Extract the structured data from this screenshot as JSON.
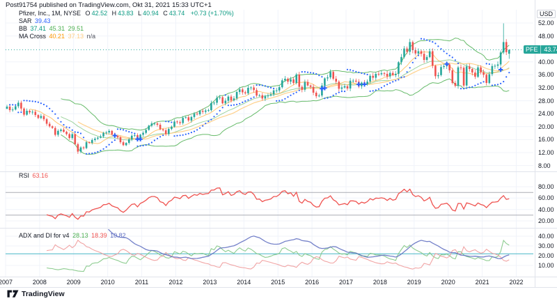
{
  "header": {
    "publish_line": "Post91754 published on TradingView.com, Okt 31, 2021 15:33 UTC+1"
  },
  "legend": {
    "symbol_title": "Pfizer, Inc., 1M, NYSE",
    "ohlc": {
      "open": {
        "label": "O",
        "value": "42.52"
      },
      "high": {
        "label": "H",
        "value": "43.83"
      },
      "low": {
        "label": "L",
        "value": "40.94"
      },
      "close": {
        "label": "C",
        "value": "43.74"
      },
      "change": "+0.73 (+1.70%)"
    },
    "sar": {
      "label": "SAR",
      "value": "39.43"
    },
    "bb": {
      "label": "BB",
      "values": [
        "37.41",
        "45.31",
        "29.51"
      ]
    },
    "ma_cross": {
      "label": "MA Cross",
      "values": [
        "40.21",
        "37.13",
        "n/a"
      ]
    },
    "rsi": {
      "label": "RSI",
      "value": "63.16"
    },
    "adx": {
      "label": "ADX and DI for v4",
      "values": [
        "28.13",
        "18.39",
        "10.82"
      ]
    }
  },
  "axes": {
    "currency_badge": "USD",
    "symbol_badge": "PFE",
    "last_price": "43.74",
    "price_ticks": [
      52,
      48,
      40,
      36,
      32,
      28,
      24,
      20,
      16,
      12,
      8
    ],
    "rsi_ticks": [
      80,
      60,
      40,
      20
    ],
    "adx_ticks": [
      40,
      30,
      20,
      10
    ],
    "years": [
      "2007",
      "2008",
      "2009",
      "2010",
      "2011",
      "2012",
      "2013",
      "2014",
      "2015",
      "2016",
      "2017",
      "2018",
      "2019",
      "2020",
      "2021",
      "2022"
    ]
  },
  "branding": {
    "logo_text": "TradingView"
  },
  "colors": {
    "up": "#26a69a",
    "down": "#ef5350",
    "bb": "#4caf50",
    "sar": "#2962ff",
    "ma_fast": "#ff9800",
    "ma_slow": "#ffcc80",
    "cross_marker": "#2962ff",
    "last_price_line": "#26a69a",
    "rsi": "#ef5350",
    "rsi_band": "#9598a1",
    "adx": "#5c6bc0",
    "di_plus": "#81c784",
    "di_minus": "#ef9a9a",
    "adx_level": "#45b5c6",
    "grid": "#f0f3fa",
    "separator": "#e0e3eb",
    "text": "#131722"
  },
  "chart_data": {
    "type": "candlestick",
    "symbol": "PFE",
    "exchange": "NYSE",
    "timeframe": "1M",
    "start_month": "2007-01",
    "end_month": "2021-10",
    "price_range_visible": [
      8,
      56
    ],
    "closes": [
      26.2,
      25.1,
      25.3,
      26.3,
      27.4,
      25.6,
      23.7,
      24.9,
      24.4,
      24.6,
      23.6,
      22.7,
      23.3,
      22.3,
      20.9,
      20.1,
      19.6,
      17.5,
      18.7,
      19.1,
      18.4,
      17.7,
      16.5,
      17.7,
      14.6,
      12.3,
      13.6,
      13.4,
      15.2,
      15.0,
      15.9,
      16.3,
      16.6,
      17.0,
      18.1,
      18.2,
      18.7,
      17.6,
      17.1,
      16.7,
      15.2,
      14.3,
      15.0,
      16.1,
      17.2,
      17.4,
      16.1,
      17.5,
      18.1,
      19.0,
      20.3,
      21.0,
      21.0,
      20.6,
      19.2,
      18.9,
      17.7,
      19.3,
      20.0,
      21.6,
      21.4,
      21.1,
      22.7,
      22.9,
      21.9,
      23.0,
      24.0,
      23.8,
      24.9,
      24.6,
      25.0,
      25.1,
      27.3,
      27.4,
      28.9,
      29.1,
      27.2,
      28.0,
      29.3,
      28.1,
      28.7,
      30.7,
      31.5,
      30.6,
      30.3,
      32.0,
      32.1,
      31.3,
      29.6,
      29.7,
      28.7,
      29.4,
      29.6,
      30.0,
      31.2,
      31.2,
      32.2,
      34.3,
      34.8,
      33.9,
      34.6,
      33.5,
      36.1,
      32.3,
      31.4,
      33.8,
      32.7,
      32.3,
      30.5,
      29.4,
      29.6,
      32.7,
      34.9,
      35.2,
      36.9,
      34.8,
      33.9,
      31.7,
      32.1,
      32.5,
      31.8,
      34.2,
      34.2,
      33.9,
      32.5,
      33.6,
      33.1,
      33.9,
      35.7,
      35.1,
      36.3,
      36.2,
      36.5,
      36.3,
      35.5,
      36.6,
      35.9,
      36.3,
      39.9,
      41.5,
      44.1,
      43.1,
      46.1,
      43.6,
      42.6,
      43.3,
      42.5,
      40.6,
      41.5,
      43.3,
      38.8,
      35.6,
      35.9,
      38.4,
      38.7,
      39.2,
      37.4,
      33.5,
      32.6,
      38.3,
      38.2,
      32.7,
      38.6,
      37.8,
      36.7,
      35.4,
      38.3,
      36.8,
      36.0,
      33.5,
      36.2,
      38.7,
      38.8,
      39.2,
      42.9,
      46.1,
      43.0,
      43.74
    ],
    "ohlc_overrides": {
      "0": {
        "o": 25.5
      },
      "25": {
        "l": 11.6
      },
      "175": {
        "h": 51.9
      },
      "177": {
        "o": 42.52,
        "h": 43.83,
        "l": 40.94,
        "c": 43.74
      }
    },
    "indicators": {
      "bollinger": {
        "period": 20,
        "stdev": 2
      },
      "ma_cross": {
        "fast": 9,
        "slow": 26
      },
      "sar": {
        "start": 0.02,
        "step": 0.02,
        "max": 0.2
      },
      "rsi": {
        "period": 14,
        "upper_band": 70,
        "lower_band": 30
      },
      "adx": {
        "period": 14,
        "key_level": 22
      }
    }
  }
}
